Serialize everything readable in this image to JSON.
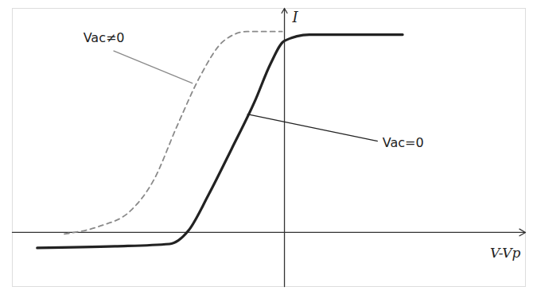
{
  "chart_data": {
    "type": "line",
    "x_label": "V-Vp",
    "y_label": "I",
    "xlim": [
      -3.5,
      3.1
    ],
    "ylim": [
      -0.7,
      2.9
    ],
    "xticks": [],
    "yticks": [],
    "tick_labels": false,
    "grid": false,
    "series": [
      {
        "name": "Vac=0",
        "color": "#222222",
        "line_style": "solid",
        "x": [
          -3.18,
          -2.18,
          -1.48,
          -1.23,
          -0.98,
          -0.68,
          -0.38,
          -0.18,
          0,
          0.32,
          0.82,
          1.52
        ],
        "values": [
          -0.2,
          -0.18,
          -0.15,
          0.03,
          0.48,
          1.08,
          1.7,
          2.18,
          2.48,
          2.56,
          2.56,
          2.56
        ],
        "label_position": [
          1.2,
          1.18
        ],
        "label_target": [
          -0.48,
          1.53
        ]
      },
      {
        "name": "Vac≠0",
        "color": "#8a8a8a",
        "line_style": "dashed",
        "x": [
          -2.83,
          -2.38,
          -1.98,
          -1.68,
          -1.38,
          -1.08,
          -0.78,
          -0.48,
          -0.03
        ],
        "values": [
          -0.02,
          0.08,
          0.28,
          0.68,
          1.38,
          2.03,
          2.48,
          2.6,
          2.6
        ],
        "label_position": [
          -2.2,
          2.35
        ],
        "label_target": [
          -1.18,
          1.93
        ]
      }
    ]
  }
}
